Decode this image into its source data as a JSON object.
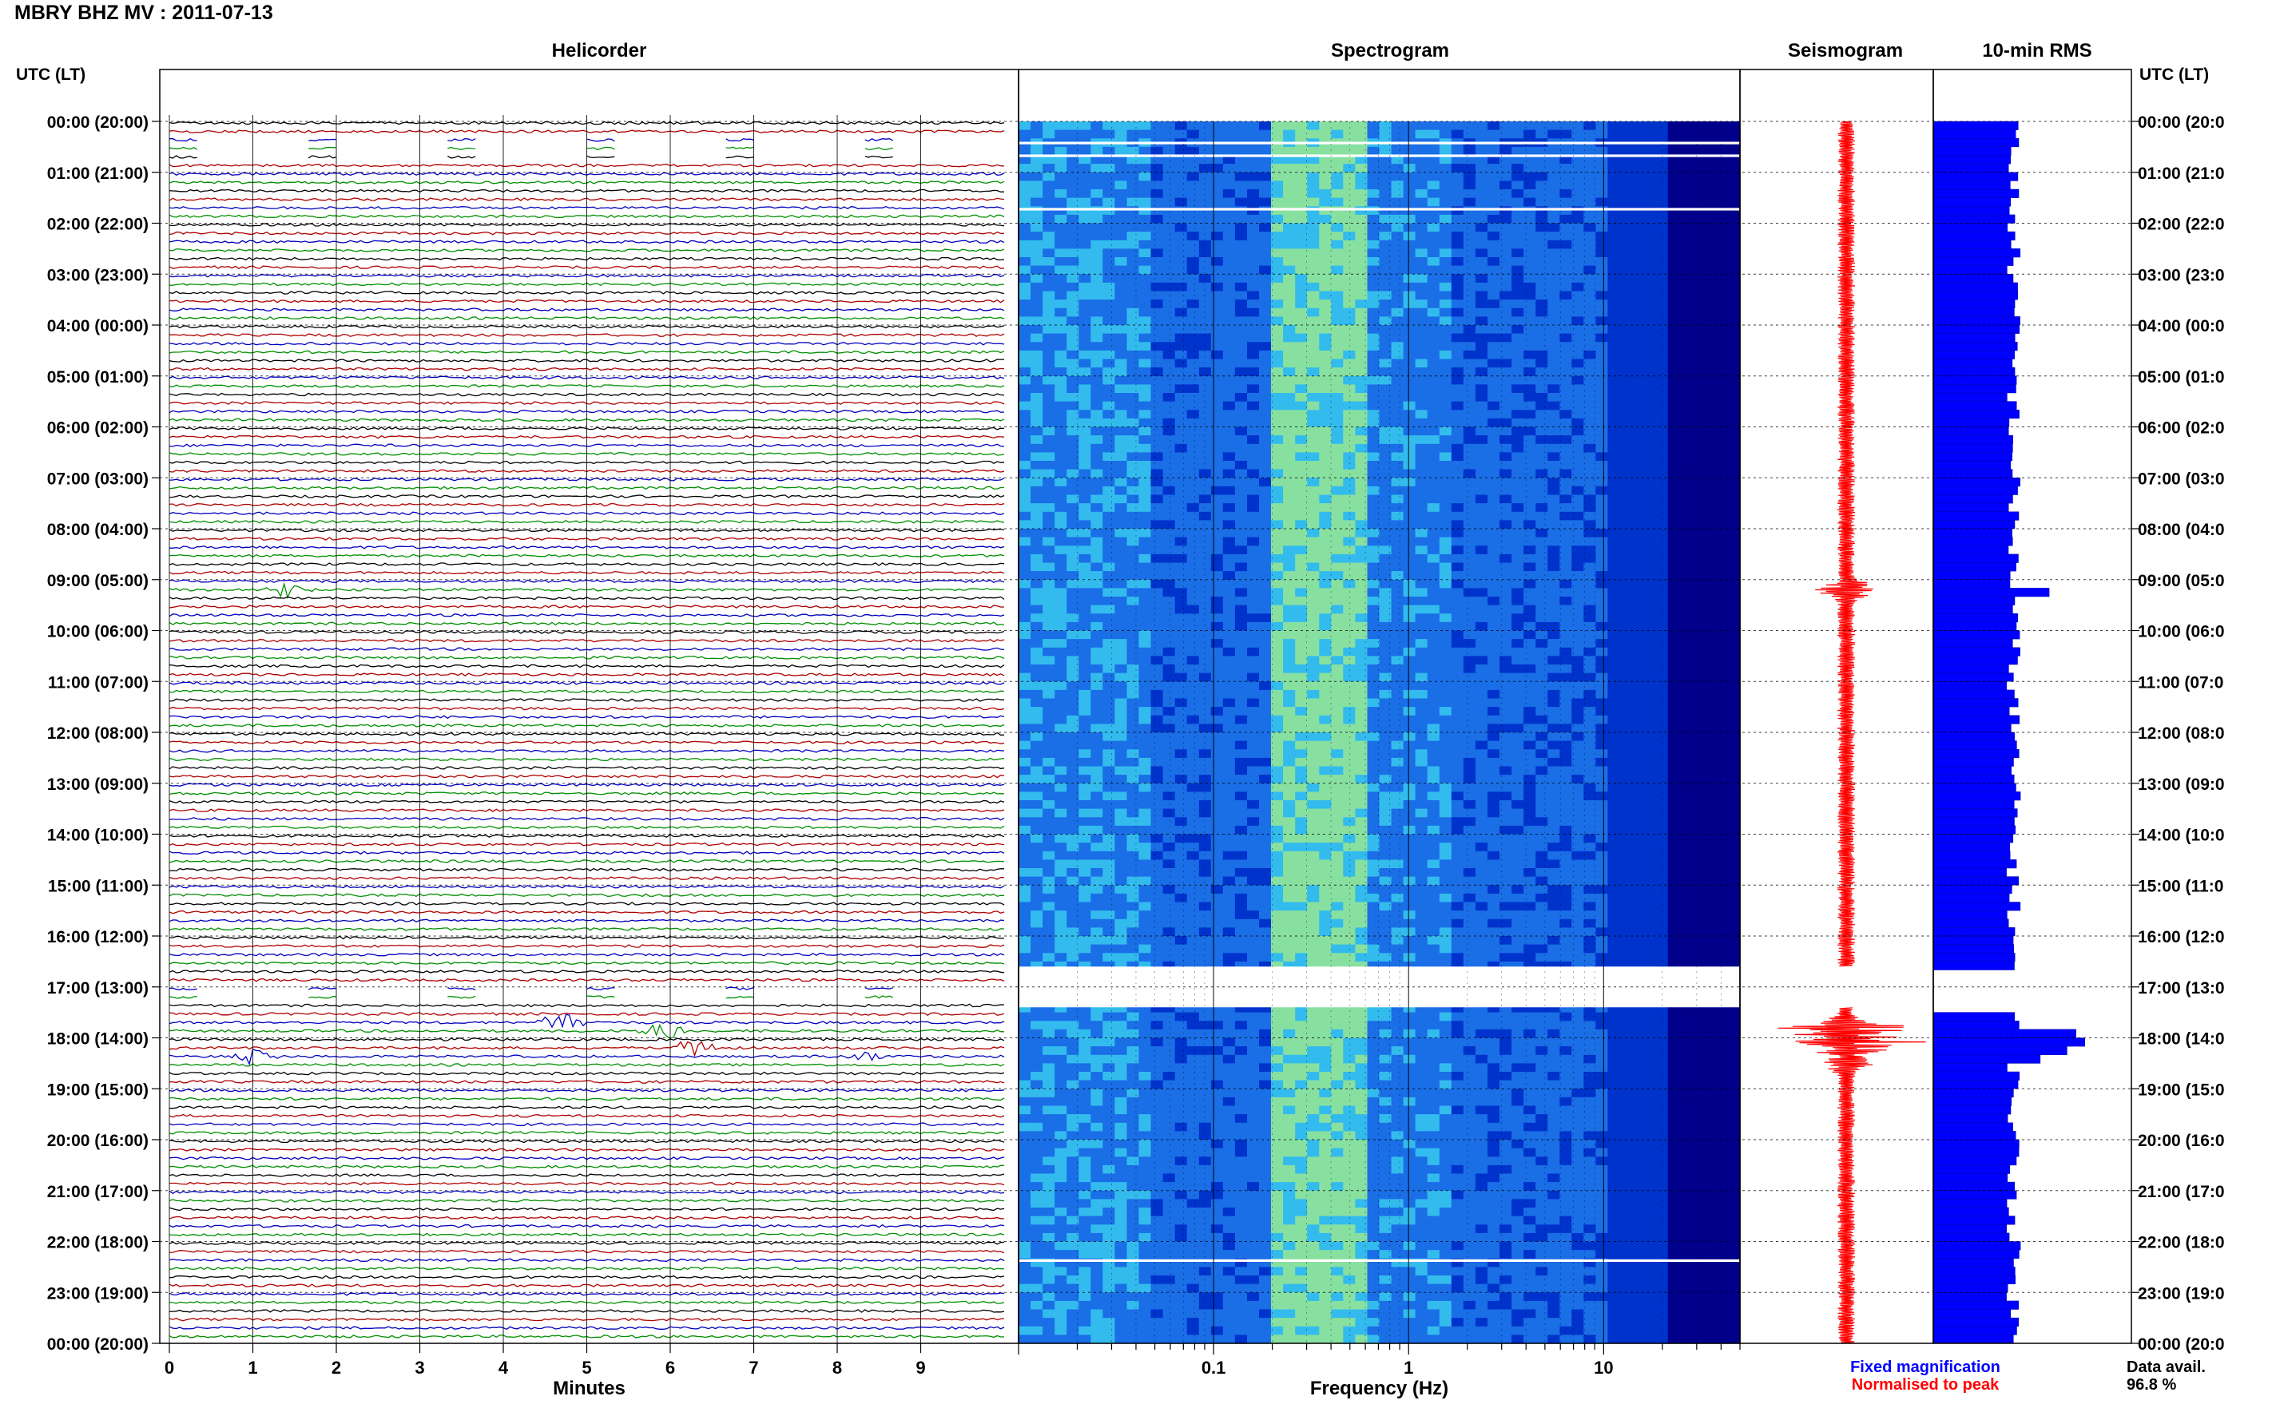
{
  "figure_title": "MBRY BHZ MV : 2011-07-13",
  "panels": {
    "helicorder": "Helicorder",
    "spectrogram": "Spectrogram",
    "seismogram": "Seismogram",
    "rms": "10-min RMS"
  },
  "time_axis_label": "UTC (LT)",
  "row_labels": [
    "00:00 (20:00)",
    "01:00 (21:00)",
    "02:00 (22:00)",
    "03:00 (23:00)",
    "04:00 (00:00)",
    "05:00 (01:00)",
    "06:00 (02:00)",
    "07:00 (03:00)",
    "08:00 (04:00)",
    "09:00 (05:00)",
    "10:00 (06:00)",
    "11:00 (07:00)",
    "12:00 (08:00)",
    "13:00 (09:00)",
    "14:00 (10:00)",
    "15:00 (11:00)",
    "16:00 (12:00)",
    "17:00 (13:00)",
    "18:00 (14:00)",
    "19:00 (15:00)",
    "20:00 (16:00)",
    "21:00 (17:00)",
    "22:00 (18:00)",
    "23:00 (19:00)",
    "00:00 (20:00)"
  ],
  "right_row_labels": [
    "00:00 (20:0",
    "01:00 (21:0",
    "02:00 (22:0",
    "03:00 (23:0",
    "04:00 (00:0",
    "05:00 (01:0",
    "06:00 (02:0",
    "07:00 (03:0",
    "08:00 (04:0",
    "09:00 (05:0",
    "10:00 (06:0",
    "11:00 (07:0",
    "12:00 (08:0",
    "13:00 (09:0",
    "14:00 (10:0",
    "15:00 (11:0",
    "16:00 (12:0",
    "17:00 (13:0",
    "18:00 (14:0",
    "19:00 (15:0",
    "20:00 (16:0",
    "21:00 (17:0",
    "22:00 (18:0",
    "23:00 (19:0",
    "00:00 (20:0"
  ],
  "legend": {
    "fixed": "Fixed magnification",
    "normalised": "Normalised to peak",
    "fixed_color": "#0000ff",
    "normalised_color": "#ff0000"
  },
  "data_avail": {
    "label": "Data avail.",
    "value": "96.8 %"
  },
  "chart_data": [
    {
      "type": "line",
      "name": "Helicorder",
      "xlabel": "Minutes",
      "xticks": [
        "0",
        "1",
        "2",
        "3",
        "4",
        "5",
        "6",
        "7",
        "8",
        "9"
      ],
      "xlim": [
        0,
        10
      ],
      "trace_colors": [
        "#000000",
        "#b00000",
        "#0000c0",
        "#009000"
      ],
      "traces_per_hour": 6,
      "gaps_hours": [
        0.5,
        17.15
      ],
      "events": [
        {
          "hour": 9.1,
          "minute": 1.4,
          "amplitude": 1.5
        },
        {
          "hour": 17.6,
          "minute": 4.7,
          "amplitude": 2.5
        },
        {
          "hour": 17.9,
          "minute": 5.9,
          "amplitude": 2.0
        },
        {
          "hour": 18.1,
          "minute": 6.3,
          "amplitude": 1.8
        },
        {
          "hour": 18.4,
          "minute": 1.0,
          "amplitude": 1.4
        },
        {
          "hour": 18.4,
          "minute": 8.3,
          "amplitude": 1.3
        }
      ]
    },
    {
      "type": "heatmap",
      "name": "Spectrogram",
      "xlabel": "Frequency (Hz)",
      "xscale": "log",
      "xlim": [
        0.01,
        50
      ],
      "xticks": [
        "0.1",
        "1",
        "10"
      ],
      "ylim_hours": [
        0,
        24
      ],
      "peak_band_hz": [
        0.2,
        0.6
      ],
      "gap_hours": [
        [
          0.4,
          0.45
        ],
        [
          0.65,
          0.7
        ],
        [
          1.7,
          1.75
        ],
        [
          16.6,
          17.4
        ],
        [
          22.35,
          22.4
        ]
      ],
      "colormap": [
        "#00008b",
        "#0033cc",
        "#1a6ee6",
        "#33bbee",
        "#88e0a0",
        "#ccee66"
      ]
    },
    {
      "type": "line",
      "name": "Seismogram",
      "ylim_hours": [
        0,
        24
      ],
      "color": "#ff0000",
      "bursts": [
        {
          "hour": 9.2,
          "amplitude": 40
        },
        {
          "hour": 17.8,
          "amplitude": 80
        },
        {
          "hour": 18.1,
          "amplitude": 100
        },
        {
          "hour": 18.5,
          "amplitude": 30
        }
      ]
    },
    {
      "type": "bar",
      "name": "10-min RMS",
      "orientation": "horizontal",
      "color": "#0000ff",
      "ylim_hours": [
        0,
        24
      ],
      "base_level": 45,
      "highlights": [
        {
          "hour": 9.2,
          "value": 65
        },
        {
          "hour": 17.8,
          "value": 80
        },
        {
          "hour": 18.0,
          "value": 85
        },
        {
          "hour": 18.2,
          "value": 75
        },
        {
          "hour": 18.4,
          "value": 60
        }
      ]
    }
  ]
}
